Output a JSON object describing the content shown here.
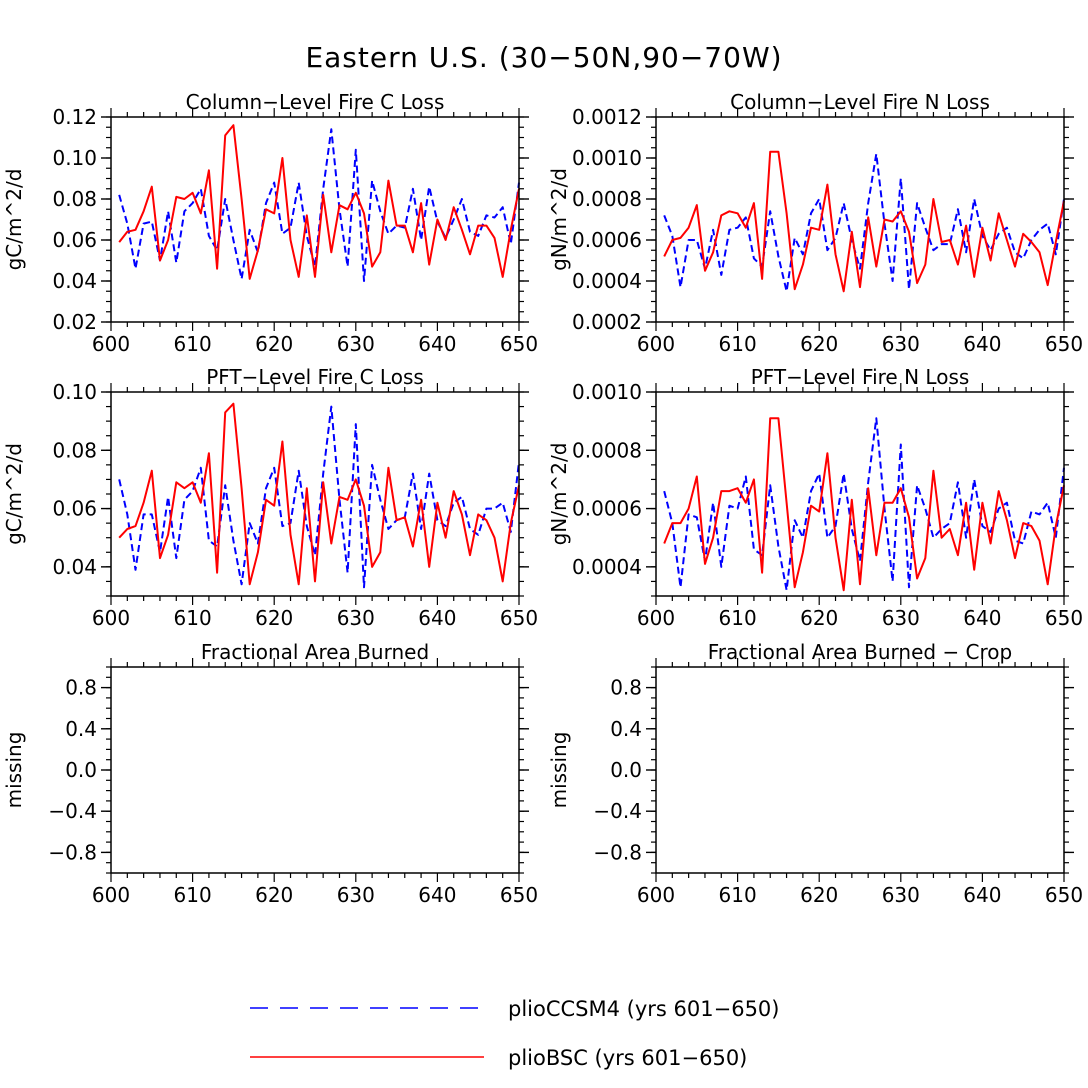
{
  "figure_title": "Eastern U.S. (30−50N,90−70W)",
  "legend": [
    {
      "label": "plioCCSM4 (yrs 601−650)",
      "color": "#0000ff",
      "style": "dashed"
    },
    {
      "label": "plioBSC (yrs 601−650)",
      "color": "#ff0000",
      "style": "solid"
    }
  ],
  "chart_data": [
    {
      "type": "line",
      "title": "Column−Level Fire C Loss",
      "ylabel": "gC/m^2/d",
      "xlim": [
        600,
        650
      ],
      "ylim": [
        0.02,
        0.12
      ],
      "xticks": [
        "600",
        "610",
        "620",
        "630",
        "640",
        "650"
      ],
      "yticks": [
        "0.02",
        "0.04",
        "0.06",
        "0.08",
        "0.10",
        "0.12"
      ],
      "x": [
        601,
        602,
        603,
        604,
        605,
        606,
        607,
        608,
        609,
        610,
        611,
        612,
        613,
        614,
        615,
        616,
        617,
        618,
        619,
        620,
        621,
        622,
        623,
        624,
        625,
        626,
        627,
        628,
        629,
        630,
        631,
        632,
        633,
        634,
        635,
        636,
        637,
        638,
        639,
        640,
        641,
        642,
        643,
        644,
        645,
        646,
        647,
        648,
        649,
        650
      ],
      "series": [
        {
          "name": "plioCCSM4",
          "color": "#0000ff",
          "style": "dashed",
          "values": [
            0.082,
            0.068,
            0.046,
            0.068,
            0.069,
            0.05,
            0.074,
            0.049,
            0.074,
            0.078,
            0.085,
            0.062,
            0.055,
            0.08,
            0.06,
            0.041,
            0.065,
            0.054,
            0.078,
            0.088,
            0.063,
            0.066,
            0.088,
            0.062,
            0.047,
            0.085,
            0.114,
            0.075,
            0.047,
            0.104,
            0.04,
            0.089,
            0.074,
            0.063,
            0.067,
            0.066,
            0.085,
            0.06,
            0.086,
            0.069,
            0.061,
            0.07,
            0.08,
            0.064,
            0.062,
            0.072,
            0.071,
            0.076,
            0.058,
            0.088
          ]
        },
        {
          "name": "plioBSC",
          "color": "#ff0000",
          "style": "solid",
          "values": [
            0.059,
            0.064,
            0.065,
            0.074,
            0.086,
            0.05,
            0.06,
            0.081,
            0.08,
            0.083,
            0.073,
            0.094,
            0.046,
            0.111,
            0.116,
            0.08,
            0.041,
            0.055,
            0.075,
            0.073,
            0.1,
            0.06,
            0.042,
            0.072,
            0.042,
            0.082,
            0.054,
            0.077,
            0.075,
            0.083,
            0.073,
            0.047,
            0.054,
            0.089,
            0.067,
            0.067,
            0.054,
            0.078,
            0.048,
            0.07,
            0.06,
            0.076,
            0.065,
            0.053,
            0.067,
            0.067,
            0.061,
            0.042,
            0.065,
            0.085
          ]
        }
      ]
    },
    {
      "type": "line",
      "title": "Column−Level Fire N Loss",
      "ylabel": "gN/m^2/d",
      "xlim": [
        600,
        650
      ],
      "ylim": [
        0.0002,
        0.0012
      ],
      "xticks": [
        "600",
        "610",
        "620",
        "630",
        "640",
        "650"
      ],
      "yticks": [
        "0.0002",
        "0.0004",
        "0.0006",
        "0.0008",
        "0.0010",
        "0.0012"
      ],
      "x": [
        601,
        602,
        603,
        604,
        605,
        606,
        607,
        608,
        609,
        610,
        611,
        612,
        613,
        614,
        615,
        616,
        617,
        618,
        619,
        620,
        621,
        622,
        623,
        624,
        625,
        626,
        627,
        628,
        629,
        630,
        631,
        632,
        633,
        634,
        635,
        636,
        637,
        638,
        639,
        640,
        641,
        642,
        643,
        644,
        645,
        646,
        647,
        648,
        649,
        650
      ],
      "series": [
        {
          "name": "plioCCSM4",
          "color": "#0000ff",
          "style": "dashed",
          "values": [
            0.00072,
            0.00062,
            0.00037,
            0.0006,
            0.0006,
            0.00046,
            0.00065,
            0.00043,
            0.00065,
            0.00066,
            0.00071,
            0.00051,
            0.00047,
            0.00074,
            0.00052,
            0.00035,
            0.00061,
            0.00053,
            0.00073,
            0.0008,
            0.00055,
            0.00061,
            0.00078,
            0.0006,
            0.00046,
            0.00078,
            0.00102,
            0.00068,
            0.0004,
            0.0009,
            0.00036,
            0.00078,
            0.00066,
            0.00055,
            0.00058,
            0.00058,
            0.00075,
            0.00054,
            0.0008,
            0.00062,
            0.00055,
            0.00063,
            0.00066,
            0.00054,
            0.00051,
            0.0006,
            0.00065,
            0.00068,
            0.00053,
            0.0008
          ]
        },
        {
          "name": "plioBSC",
          "color": "#ff0000",
          "style": "solid",
          "values": [
            0.00052,
            0.0006,
            0.00061,
            0.00066,
            0.00077,
            0.00045,
            0.00054,
            0.00072,
            0.00074,
            0.00073,
            0.00066,
            0.00078,
            0.00041,
            0.00103,
            0.00103,
            0.00073,
            0.00036,
            0.00048,
            0.00066,
            0.00065,
            0.00087,
            0.00053,
            0.00035,
            0.00064,
            0.00037,
            0.00071,
            0.00047,
            0.0007,
            0.00069,
            0.00074,
            0.00064,
            0.00039,
            0.00048,
            0.0008,
            0.00059,
            0.0006,
            0.00048,
            0.00067,
            0.00042,
            0.00066,
            0.0005,
            0.00073,
            0.0006,
            0.00047,
            0.00063,
            0.00059,
            0.00054,
            0.00038,
            0.00059,
            0.00079
          ]
        }
      ]
    },
    {
      "type": "line",
      "title": "PFT−Level Fire C Loss",
      "ylabel": "gC/m^2/d",
      "xlim": [
        600,
        650
      ],
      "ylim": [
        0.03,
        0.1
      ],
      "xticks": [
        "600",
        "610",
        "620",
        "630",
        "640",
        "650"
      ],
      "yticks": [
        "0.04",
        "0.06",
        "0.08",
        "0.10"
      ],
      "x": [
        601,
        602,
        603,
        604,
        605,
        606,
        607,
        608,
        609,
        610,
        611,
        612,
        613,
        614,
        615,
        616,
        617,
        618,
        619,
        620,
        621,
        622,
        623,
        624,
        625,
        626,
        627,
        628,
        629,
        630,
        631,
        632,
        633,
        634,
        635,
        636,
        637,
        638,
        639,
        640,
        641,
        642,
        643,
        644,
        645,
        646,
        647,
        648,
        649,
        650
      ],
      "series": [
        {
          "name": "plioCCSM4",
          "color": "#0000ff",
          "style": "dashed",
          "values": [
            0.07,
            0.058,
            0.039,
            0.058,
            0.058,
            0.045,
            0.064,
            0.043,
            0.063,
            0.066,
            0.074,
            0.049,
            0.047,
            0.068,
            0.049,
            0.034,
            0.055,
            0.048,
            0.067,
            0.074,
            0.054,
            0.055,
            0.073,
            0.054,
            0.044,
            0.072,
            0.095,
            0.063,
            0.038,
            0.089,
            0.033,
            0.075,
            0.063,
            0.053,
            0.056,
            0.057,
            0.072,
            0.053,
            0.072,
            0.056,
            0.054,
            0.062,
            0.064,
            0.053,
            0.051,
            0.06,
            0.06,
            0.062,
            0.052,
            0.076
          ]
        },
        {
          "name": "plioBSC",
          "color": "#ff0000",
          "style": "solid",
          "values": [
            0.05,
            0.053,
            0.054,
            0.062,
            0.073,
            0.043,
            0.051,
            0.069,
            0.067,
            0.069,
            0.062,
            0.079,
            0.038,
            0.093,
            0.096,
            0.067,
            0.034,
            0.045,
            0.063,
            0.061,
            0.083,
            0.051,
            0.034,
            0.067,
            0.035,
            0.069,
            0.048,
            0.064,
            0.063,
            0.07,
            0.061,
            0.04,
            0.045,
            0.074,
            0.056,
            0.057,
            0.047,
            0.063,
            0.04,
            0.062,
            0.05,
            0.066,
            0.058,
            0.044,
            0.058,
            0.056,
            0.05,
            0.035,
            0.055,
            0.068
          ]
        }
      ]
    },
    {
      "type": "line",
      "title": "PFT−Level Fire N Loss",
      "ylabel": "gN/m^2/d",
      "xlim": [
        600,
        650
      ],
      "ylim": [
        0.0003,
        0.001
      ],
      "xticks": [
        "600",
        "610",
        "620",
        "630",
        "640",
        "650"
      ],
      "yticks": [
        "0.0004",
        "0.0006",
        "0.0008",
        "0.0010"
      ],
      "x": [
        601,
        602,
        603,
        604,
        605,
        606,
        607,
        608,
        609,
        610,
        611,
        612,
        613,
        614,
        615,
        616,
        617,
        618,
        619,
        620,
        621,
        622,
        623,
        624,
        625,
        626,
        627,
        628,
        629,
        630,
        631,
        632,
        633,
        634,
        635,
        636,
        637,
        638,
        639,
        640,
        641,
        642,
        643,
        644,
        645,
        646,
        647,
        648,
        649,
        650
      ],
      "series": [
        {
          "name": "plioCCSM4",
          "color": "#0000ff",
          "style": "dashed",
          "values": [
            0.00066,
            0.00055,
            0.00033,
            0.00058,
            0.00057,
            0.00042,
            0.00062,
            0.0004,
            0.00061,
            0.0006,
            0.00071,
            0.00046,
            0.00044,
            0.00068,
            0.00047,
            0.00032,
            0.00056,
            0.0005,
            0.00066,
            0.00072,
            0.0005,
            0.00054,
            0.00072,
            0.00053,
            0.00042,
            0.00069,
            0.00091,
            0.0006,
            0.00035,
            0.00082,
            0.00033,
            0.00068,
            0.0006,
            0.0005,
            0.00053,
            0.00055,
            0.00069,
            0.0005,
            0.0007,
            0.00054,
            0.00052,
            0.0006,
            0.00062,
            0.00049,
            0.00048,
            0.00059,
            0.00058,
            0.00062,
            0.0005,
            0.00074
          ]
        },
        {
          "name": "plioBSC",
          "color": "#ff0000",
          "style": "solid",
          "values": [
            0.00048,
            0.00055,
            0.00055,
            0.0006,
            0.00071,
            0.00041,
            0.0005,
            0.00066,
            0.00066,
            0.00067,
            0.00062,
            0.0007,
            0.00038,
            0.00091,
            0.00091,
            0.00062,
            0.00033,
            0.00045,
            0.00061,
            0.00059,
            0.00079,
            0.0005,
            0.00032,
            0.00063,
            0.00034,
            0.00067,
            0.00044,
            0.00062,
            0.00062,
            0.00067,
            0.00057,
            0.00036,
            0.00043,
            0.00073,
            0.0005,
            0.00053,
            0.00044,
            0.00062,
            0.00039,
            0.00062,
            0.00048,
            0.00066,
            0.00056,
            0.00043,
            0.00055,
            0.00054,
            0.00049,
            0.00034,
            0.00054,
            0.00068
          ]
        }
      ]
    },
    {
      "type": "line",
      "title": "Fractional Area Burned",
      "ylabel": "missing",
      "xlim": [
        600,
        650
      ],
      "ylim": [
        -1,
        1
      ],
      "xticks": [
        "600",
        "610",
        "620",
        "630",
        "640",
        "650"
      ],
      "yticks": [
        "−0.8",
        "−0.4",
        "0.0",
        "0.4",
        "0.8"
      ],
      "x": [],
      "series": []
    },
    {
      "type": "line",
      "title": "Fractional Area Burned − Crop",
      "ylabel": "missing",
      "xlim": [
        600,
        650
      ],
      "ylim": [
        -1,
        1
      ],
      "xticks": [
        "600",
        "610",
        "620",
        "630",
        "640",
        "650"
      ],
      "yticks": [
        "−0.8",
        "−0.4",
        "0.0",
        "0.4",
        "0.8"
      ],
      "x": [],
      "series": []
    }
  ]
}
